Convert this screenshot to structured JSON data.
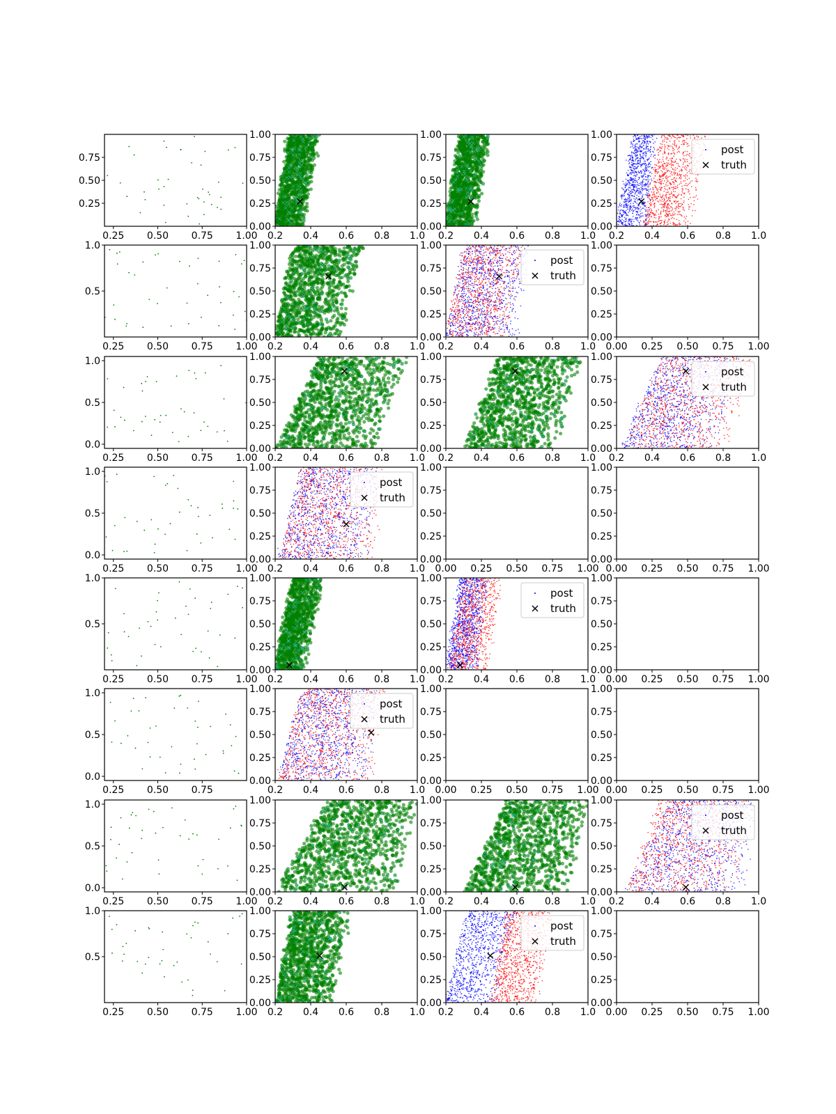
{
  "figure": {
    "background": "#ffffff"
  },
  "colors": {
    "green": "#008000",
    "cyan": "#40c0c0",
    "blue": "#0000ff",
    "red": "#ff0000",
    "axis": "#000000",
    "truth": "#000000"
  },
  "legend_labels": {
    "post": "post",
    "truth": "truth"
  },
  "chart_data": [
    {
      "row": 0,
      "col": 0,
      "type": "scatter",
      "kind": "sparse",
      "xlim": [
        0.2,
        1.0
      ],
      "ylim": [
        0.0,
        1.0
      ],
      "xticks": [
        "0.25",
        "0.50",
        "0.75",
        "1.00"
      ],
      "yticks": [
        "0.25",
        "0.50",
        "0.75"
      ],
      "ytick_values": [
        0.25,
        0.5,
        0.75
      ]
    },
    {
      "row": 0,
      "col": 1,
      "type": "scatter",
      "kind": "green",
      "xlim": [
        0.2,
        1.0
      ],
      "ylim": [
        0.0,
        1.0
      ],
      "band": [
        0.2,
        0.36,
        0.28,
        0.45
      ],
      "truth": [
        0.34,
        0.27
      ],
      "xticks": [
        "0.2",
        "0.4",
        "0.6",
        "0.8",
        "1.0"
      ],
      "yticks": [
        "0.00",
        "0.25",
        "0.50",
        "0.75",
        "1.00"
      ]
    },
    {
      "row": 0,
      "col": 2,
      "type": "scatter",
      "kind": "green",
      "xlim": [
        0.2,
        1.0
      ],
      "ylim": [
        0.0,
        1.0
      ],
      "band": [
        0.2,
        0.36,
        0.28,
        0.45
      ],
      "truth": [
        0.34,
        0.27
      ],
      "xticks": [
        "0.2",
        "0.4",
        "0.6",
        "0.8",
        "1.0"
      ],
      "yticks": [
        "0.00",
        "0.25",
        "0.50",
        "0.75",
        "1.00"
      ]
    },
    {
      "row": 0,
      "col": 3,
      "type": "scatter",
      "kind": "rb",
      "xlim": [
        0.2,
        1.0
      ],
      "ylim": [
        0.0,
        1.0
      ],
      "blue_band": [
        0.2,
        0.38,
        0.3,
        0.42
      ],
      "red_band": [
        0.35,
        0.62,
        0.45,
        0.72
      ],
      "truth": [
        0.34,
        0.27
      ],
      "legend": true,
      "xticks": [
        "0.2",
        "0.4",
        "0.6",
        "0.8",
        "1.0"
      ],
      "yticks": [
        "0.00",
        "0.25",
        "0.50",
        "0.75",
        "1.00"
      ]
    },
    {
      "row": 1,
      "col": 0,
      "type": "scatter",
      "kind": "sparse",
      "xlim": [
        0.2,
        1.0
      ],
      "ylim": [
        0.0,
        1.0
      ],
      "xticks": [
        "0.25",
        "0.50",
        "0.75",
        "1.00"
      ],
      "yticks": [
        "0.5",
        "1.0"
      ],
      "ytick_values": [
        0.5,
        1.0
      ]
    },
    {
      "row": 1,
      "col": 1,
      "type": "scatter",
      "kind": "green",
      "xlim": [
        0.2,
        1.0
      ],
      "ylim": [
        0.0,
        1.0
      ],
      "band": [
        0.2,
        0.58,
        0.3,
        0.7
      ],
      "truth": [
        0.5,
        0.66
      ],
      "xticks": [
        "0.2",
        "0.4",
        "0.6",
        "0.8",
        "1.0"
      ],
      "yticks": [
        "0.00",
        "0.25",
        "0.50",
        "0.75",
        "1.00"
      ]
    },
    {
      "row": 1,
      "col": 2,
      "type": "scatter",
      "kind": "rb",
      "xlim": [
        0.2,
        1.0
      ],
      "ylim": [
        0.0,
        1.0
      ],
      "blue_band": [
        0.2,
        0.6,
        0.3,
        0.68
      ],
      "red_band": [
        0.2,
        0.55,
        0.3,
        0.65
      ],
      "truth": [
        0.5,
        0.66
      ],
      "legend": true,
      "xticks": [
        "0.2",
        "0.4",
        "0.6",
        "0.8",
        "1.0"
      ],
      "yticks": [
        "0.00",
        "0.25",
        "0.50",
        "0.75",
        "1.00"
      ]
    },
    {
      "row": 1,
      "col": 3,
      "type": "empty",
      "xlim": [
        0.0,
        1.0
      ],
      "ylim": [
        0.0,
        1.0
      ],
      "xticks": [
        "0.00",
        "0.25",
        "0.50",
        "0.75",
        "1.00"
      ],
      "yticks": [
        "0.00",
        "0.25",
        "0.50",
        "0.75",
        "1.00"
      ]
    },
    {
      "row": 2,
      "col": 0,
      "type": "scatter",
      "kind": "sparse",
      "xlim": [
        0.2,
        1.0
      ],
      "ylim": [
        -0.05,
        1.05
      ],
      "xticks": [
        "0.25",
        "0.50",
        "0.75",
        "1.00"
      ],
      "yticks": [
        "0.0",
        "0.5",
        "1.0"
      ],
      "ytick_values": [
        0.0,
        0.5,
        1.0
      ]
    },
    {
      "row": 2,
      "col": 1,
      "type": "scatter",
      "kind": "green",
      "xlim": [
        0.2,
        1.0
      ],
      "ylim": [
        0.0,
        1.0
      ],
      "band": [
        0.2,
        0.78,
        0.45,
        0.95
      ],
      "truth": [
        0.59,
        0.84
      ],
      "xticks": [
        "0.2",
        "0.4",
        "0.6",
        "0.8",
        "1.0"
      ],
      "yticks": [
        "0.00",
        "0.25",
        "0.50",
        "0.75",
        "1.00"
      ]
    },
    {
      "row": 2,
      "col": 2,
      "type": "scatter",
      "kind": "green",
      "xlim": [
        0.2,
        1.0
      ],
      "ylim": [
        0.0,
        1.0
      ],
      "band": [
        0.3,
        0.82,
        0.5,
        0.98
      ],
      "truth": [
        0.59,
        0.84
      ],
      "xticks": [
        "0.2",
        "0.4",
        "0.6",
        "0.8",
        "1.0"
      ],
      "yticks": [
        "0.00",
        "0.25",
        "0.50",
        "0.75",
        "1.00"
      ]
    },
    {
      "row": 2,
      "col": 3,
      "type": "scatter",
      "kind": "rb",
      "xlim": [
        0.2,
        1.0
      ],
      "ylim": [
        0.0,
        1.0
      ],
      "blue_band": [
        0.22,
        0.75,
        0.45,
        0.92
      ],
      "red_band": [
        0.25,
        0.82,
        0.45,
        1.0
      ],
      "truth": [
        0.59,
        0.84
      ],
      "legend": true,
      "xticks": [
        "0.2",
        "0.4",
        "0.6",
        "0.8",
        "1.0"
      ],
      "yticks": [
        "0.00",
        "0.25",
        "0.50",
        "0.75",
        "1.00"
      ]
    },
    {
      "row": 3,
      "col": 0,
      "type": "scatter",
      "kind": "sparse",
      "xlim": [
        0.2,
        1.0
      ],
      "ylim": [
        -0.05,
        1.05
      ],
      "xticks": [
        "0.25",
        "0.50",
        "0.75",
        "1.00"
      ],
      "yticks": [
        "0.0",
        "0.5",
        "1.0"
      ],
      "ytick_values": [
        0.0,
        0.5,
        1.0
      ]
    },
    {
      "row": 3,
      "col": 1,
      "type": "scatter",
      "kind": "rb",
      "xlim": [
        0.2,
        1.0
      ],
      "ylim": [
        0.0,
        1.0
      ],
      "blue_band": [
        0.22,
        0.72,
        0.35,
        0.8
      ],
      "red_band": [
        0.22,
        0.75,
        0.35,
        0.82
      ],
      "truth": [
        0.6,
        0.38
      ],
      "legend": true,
      "xticks": [
        "0.2",
        "0.4",
        "0.6",
        "0.8",
        "1.0"
      ],
      "yticks": [
        "0.00",
        "0.25",
        "0.50",
        "0.75",
        "1.00"
      ]
    },
    {
      "row": 3,
      "col": 2,
      "type": "empty",
      "xlim": [
        0.0,
        1.0
      ],
      "ylim": [
        0.0,
        1.0
      ],
      "xticks": [
        "0.00",
        "0.25",
        "0.50",
        "0.75",
        "1.00"
      ],
      "yticks": [
        "0.00",
        "0.25",
        "0.50",
        "0.75",
        "1.00"
      ]
    },
    {
      "row": 3,
      "col": 3,
      "type": "empty",
      "xlim": [
        0.0,
        1.0
      ],
      "ylim": [
        0.0,
        1.0
      ],
      "xticks": [
        "0.00",
        "0.25",
        "0.50",
        "0.75",
        "1.00"
      ],
      "yticks": [
        "0.00",
        "0.25",
        "0.50",
        "0.75",
        "1.00"
      ]
    },
    {
      "row": 4,
      "col": 0,
      "type": "scatter",
      "kind": "sparse",
      "xlim": [
        0.2,
        1.0
      ],
      "ylim": [
        0.0,
        1.0
      ],
      "xticks": [
        "0.25",
        "0.50",
        "0.75",
        "1.00"
      ],
      "yticks": [
        "0.5",
        "1.0"
      ],
      "ytick_values": [
        0.5,
        1.0
      ]
    },
    {
      "row": 4,
      "col": 1,
      "type": "scatter",
      "kind": "green",
      "xlim": [
        0.2,
        1.0
      ],
      "ylim": [
        0.0,
        1.0
      ],
      "band": [
        0.2,
        0.36,
        0.3,
        0.47
      ],
      "truth": [
        0.28,
        0.05
      ],
      "xticks": [
        "0.2",
        "0.4",
        "0.6",
        "0.8",
        "1.0"
      ],
      "yticks": [
        "0.00",
        "0.25",
        "0.50",
        "0.75",
        "1.00"
      ]
    },
    {
      "row": 4,
      "col": 2,
      "type": "scatter",
      "kind": "rb",
      "xlim": [
        0.2,
        1.0
      ],
      "ylim": [
        0.0,
        1.0
      ],
      "blue_band": [
        0.2,
        0.38,
        0.28,
        0.44
      ],
      "red_band": [
        0.22,
        0.44,
        0.3,
        0.52
      ],
      "truth": [
        0.28,
        0.05
      ],
      "legend": true,
      "xticks": [
        "0.2",
        "0.4",
        "0.6",
        "0.8",
        "1.0"
      ],
      "yticks": [
        "0.00",
        "0.25",
        "0.50",
        "0.75",
        "1.00"
      ]
    },
    {
      "row": 4,
      "col": 3,
      "type": "empty",
      "xlim": [
        0.0,
        1.0
      ],
      "ylim": [
        0.0,
        1.0
      ],
      "xticks": [
        "0.00",
        "0.25",
        "0.50",
        "0.75",
        "1.00"
      ],
      "yticks": [
        "0.00",
        "0.25",
        "0.50",
        "0.75",
        "1.00"
      ]
    },
    {
      "row": 5,
      "col": 0,
      "type": "scatter",
      "kind": "sparse",
      "xlim": [
        0.2,
        1.0
      ],
      "ylim": [
        -0.05,
        1.05
      ],
      "xticks": [
        "0.25",
        "0.50",
        "0.75"
      ],
      "yticks": [
        "0.0",
        "0.5",
        "1.0"
      ],
      "ytick_values": [
        0.0,
        0.5,
        1.0
      ]
    },
    {
      "row": 5,
      "col": 1,
      "type": "scatter",
      "kind": "rb",
      "xlim": [
        0.2,
        1.0
      ],
      "ylim": [
        0.0,
        1.0
      ],
      "blue_band": [
        0.22,
        0.72,
        0.35,
        0.8
      ],
      "red_band": [
        0.22,
        0.75,
        0.35,
        0.82
      ],
      "truth": [
        0.74,
        0.52
      ],
      "legend": true,
      "xticks": [
        "0.2",
        "0.4",
        "0.6",
        "0.8",
        "1.0"
      ],
      "yticks": [
        "0.00",
        "0.25",
        "0.50",
        "0.75",
        "1.00"
      ]
    },
    {
      "row": 5,
      "col": 2,
      "type": "empty",
      "xlim": [
        0.0,
        1.0
      ],
      "ylim": [
        0.0,
        1.0
      ],
      "xticks": [
        "0.00",
        "0.25",
        "0.50",
        "0.75",
        "1.00"
      ],
      "yticks": [
        "0.00",
        "0.25",
        "0.50",
        "0.75",
        "1.00"
      ]
    },
    {
      "row": 5,
      "col": 3,
      "type": "empty",
      "xlim": [
        0.0,
        1.0
      ],
      "ylim": [
        0.0,
        1.0
      ],
      "xticks": [
        "0.00",
        "0.25",
        "0.50",
        "0.75",
        "1.00"
      ],
      "yticks": [
        "0.00",
        "0.25",
        "0.50",
        "0.75",
        "1.00"
      ]
    },
    {
      "row": 6,
      "col": 0,
      "type": "scatter",
      "kind": "sparse",
      "xlim": [
        0.2,
        1.0
      ],
      "ylim": [
        -0.05,
        1.05
      ],
      "xticks": [
        "0.25",
        "0.50",
        "0.75",
        "1.00"
      ],
      "yticks": [
        "0.0",
        "0.5",
        "1.0"
      ],
      "ytick_values": [
        0.0,
        0.5,
        1.0
      ]
    },
    {
      "row": 6,
      "col": 1,
      "type": "scatter",
      "kind": "green",
      "xlim": [
        0.2,
        1.0
      ],
      "ylim": [
        0.0,
        1.0
      ],
      "band": [
        0.2,
        0.9,
        0.5,
        1.0
      ],
      "truth": [
        0.59,
        0.05
      ],
      "xticks": [
        "0.2",
        "0.4",
        "0.6",
        "0.8",
        "1.0"
      ],
      "yticks": [
        "0.00",
        "0.25",
        "0.50",
        "0.75",
        "1.00"
      ]
    },
    {
      "row": 6,
      "col": 2,
      "type": "scatter",
      "kind": "green",
      "xlim": [
        0.2,
        1.0
      ],
      "ylim": [
        0.0,
        1.0
      ],
      "band": [
        0.3,
        0.92,
        0.55,
        1.0
      ],
      "truth": [
        0.59,
        0.05
      ],
      "xticks": [
        "0.2",
        "0.4",
        "0.6",
        "0.8",
        "1.0"
      ],
      "yticks": [
        "0.00",
        "0.25",
        "0.50",
        "0.75",
        "1.00"
      ]
    },
    {
      "row": 6,
      "col": 3,
      "type": "scatter",
      "kind": "rb",
      "xlim": [
        0.2,
        1.0
      ],
      "ylim": [
        0.0,
        1.0
      ],
      "blue_band": [
        0.25,
        0.92,
        0.5,
        1.0
      ],
      "red_band": [
        0.25,
        0.86,
        0.45,
        0.98
      ],
      "truth": [
        0.59,
        0.05
      ],
      "legend": true,
      "xticks": [
        "0.2",
        "0.4",
        "0.6",
        "0.8",
        "1.0"
      ],
      "yticks": [
        "0.00",
        "0.25",
        "0.50",
        "0.75",
        "1.00"
      ]
    },
    {
      "row": 7,
      "col": 0,
      "type": "scatter",
      "kind": "sparse",
      "xlim": [
        0.2,
        1.0
      ],
      "ylim": [
        0.0,
        1.0
      ],
      "xticks": [
        "0.25",
        "0.50",
        "0.75",
        "1.00"
      ],
      "yticks": [
        "0.5",
        "1.0"
      ],
      "ytick_values": [
        0.5,
        1.0
      ]
    },
    {
      "row": 7,
      "col": 1,
      "type": "scatter",
      "kind": "green",
      "xlim": [
        0.2,
        1.0
      ],
      "ylim": [
        0.0,
        1.0
      ],
      "band": [
        0.2,
        0.52,
        0.3,
        0.62
      ],
      "truth": [
        0.45,
        0.51
      ],
      "xticks": [
        "0.2",
        "0.4",
        "0.6",
        "0.8",
        "1.0"
      ],
      "yticks": [
        "0.00",
        "0.25",
        "0.50",
        "0.75",
        "1.00"
      ]
    },
    {
      "row": 7,
      "col": 2,
      "type": "scatter",
      "kind": "rb",
      "xlim": [
        0.2,
        1.0
      ],
      "ylim": [
        0.0,
        1.0
      ],
      "blue_band": [
        0.2,
        0.48,
        0.32,
        0.6
      ],
      "red_band": [
        0.45,
        0.72,
        0.55,
        0.82
      ],
      "truth": [
        0.45,
        0.51
      ],
      "legend": true,
      "xticks": [
        "0.2",
        "0.4",
        "0.6",
        "0.8",
        "1.0"
      ],
      "yticks": [
        "0.00",
        "0.25",
        "0.50",
        "0.75",
        "1.00"
      ]
    },
    {
      "row": 7,
      "col": 3,
      "type": "empty",
      "xlim": [
        0.0,
        1.0
      ],
      "ylim": [
        0.0,
        1.0
      ],
      "xticks": [
        "0.00",
        "0.25",
        "0.50",
        "0.75",
        "1.00"
      ],
      "yticks": [
        "0.00",
        "0.25",
        "0.50",
        "0.75",
        "1.00"
      ]
    }
  ]
}
